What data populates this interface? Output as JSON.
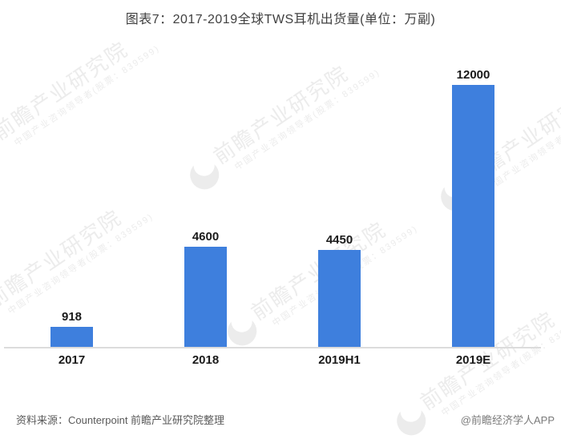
{
  "title": "图表7：2017-2019全球TWS耳机出货量(单位：万副)",
  "chart_data": {
    "type": "bar",
    "title": "图表7：2017-2019全球TWS耳机出货量(单位：万副)",
    "categories": [
      "2017",
      "2018",
      "2019H1",
      "2019E"
    ],
    "values": [
      918,
      4600,
      4450,
      12000
    ],
    "unit": "万副",
    "xlabel": "",
    "ylabel": "",
    "ylim": [
      0,
      12300
    ],
    "y_axis_visible": false,
    "grid": "off",
    "legend": "none",
    "value_labels_shown": true,
    "bar_color": "#3e7fdd"
  },
  "footer": {
    "source": "资料来源：Counterpoint 前瞻产业研究院整理",
    "credit": "@前瞻经济学人APP"
  },
  "watermark": {
    "brand": "前瞻产业研究院",
    "tagline": "中国产业咨询领导者(股票：839599)"
  },
  "colors": {
    "bar": "#3e7fdd",
    "axis_line": "#dcdcdc",
    "title_text": "#3f3f3f",
    "data_label": "#1a1a1a",
    "source_text": "#595959",
    "credit_text": "#7a7a7a",
    "watermark": "#ececec"
  }
}
